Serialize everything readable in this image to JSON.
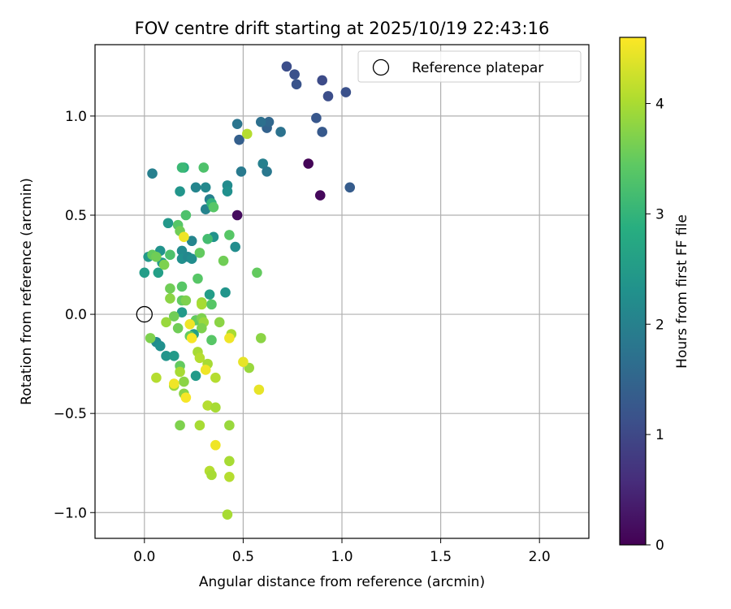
{
  "chart_data": {
    "type": "scatter",
    "title": "FOV centre drift starting at 2025/10/19 22:43:16",
    "xlabel": "Angular distance from reference (arcmin)",
    "ylabel": "Rotation from reference (arcmin)",
    "xlim": [
      -0.25,
      2.25
    ],
    "ylim": [
      -1.13,
      1.36
    ],
    "xticks": [
      0.0,
      0.5,
      1.0,
      1.5,
      2.0
    ],
    "xtick_labels": [
      "0.0",
      "0.5",
      "1.0",
      "1.5",
      "2.0"
    ],
    "yticks": [
      -1.0,
      -0.5,
      0.0,
      0.5,
      1.0
    ],
    "ytick_labels": [
      "−1.0",
      "−0.5",
      "0.0",
      "0.5",
      "1.0"
    ],
    "grid": true,
    "legend": {
      "position": "top-right",
      "entries": [
        "Reference platepar"
      ]
    },
    "reference_point": {
      "x": 0.0,
      "y": 0.0,
      "label": "Reference platepar"
    },
    "colorbar": {
      "label": "Hours from first FF file",
      "range": [
        0,
        4.6
      ],
      "ticks": [
        0,
        1,
        2,
        3,
        4
      ],
      "tick_labels": [
        "0",
        "1",
        "2",
        "3",
        "4"
      ],
      "colormap": "viridis"
    },
    "points": [
      {
        "x": 0.83,
        "y": 0.76,
        "t": 0.05
      },
      {
        "x": 0.89,
        "y": 0.6,
        "t": 0.1
      },
      {
        "x": 0.47,
        "y": 0.5,
        "t": 0.15
      },
      {
        "x": 0.72,
        "y": 1.25,
        "t": 1.1
      },
      {
        "x": 0.76,
        "y": 1.21,
        "t": 1.15
      },
      {
        "x": 0.77,
        "y": 1.16,
        "t": 1.2
      },
      {
        "x": 0.9,
        "y": 1.18,
        "t": 1.05
      },
      {
        "x": 0.93,
        "y": 1.1,
        "t": 1.1
      },
      {
        "x": 1.02,
        "y": 1.12,
        "t": 1.15
      },
      {
        "x": 0.87,
        "y": 0.99,
        "t": 1.25
      },
      {
        "x": 0.9,
        "y": 0.92,
        "t": 1.3
      },
      {
        "x": 1.04,
        "y": 0.64,
        "t": 1.35
      },
      {
        "x": 0.48,
        "y": 0.88,
        "t": 1.4
      },
      {
        "x": 0.62,
        "y": 0.94,
        "t": 1.45
      },
      {
        "x": 0.63,
        "y": 0.97,
        "t": 1.55
      },
      {
        "x": 0.59,
        "y": 0.97,
        "t": 1.7
      },
      {
        "x": 0.69,
        "y": 0.92,
        "t": 1.75
      },
      {
        "x": 0.47,
        "y": 0.96,
        "t": 1.8
      },
      {
        "x": 0.49,
        "y": 0.72,
        "t": 1.9
      },
      {
        "x": 0.6,
        "y": 0.76,
        "t": 2.0
      },
      {
        "x": 0.62,
        "y": 0.72,
        "t": 1.85
      },
      {
        "x": 0.04,
        "y": 0.71,
        "t": 2.0
      },
      {
        "x": 0.26,
        "y": 0.64,
        "t": 2.1
      },
      {
        "x": 0.31,
        "y": 0.64,
        "t": 2.15
      },
      {
        "x": 0.42,
        "y": 0.65,
        "t": 2.2
      },
      {
        "x": 0.42,
        "y": 0.62,
        "t": 2.3
      },
      {
        "x": 0.18,
        "y": 0.62,
        "t": 2.4
      },
      {
        "x": 0.33,
        "y": 0.58,
        "t": 2.0
      },
      {
        "x": 0.31,
        "y": 0.53,
        "t": 2.05
      },
      {
        "x": 0.46,
        "y": 0.34,
        "t": 2.25
      },
      {
        "x": 0.35,
        "y": 0.39,
        "t": 2.35
      },
      {
        "x": 0.24,
        "y": 0.37,
        "t": 2.1
      },
      {
        "x": 0.19,
        "y": 0.32,
        "t": 2.2
      },
      {
        "x": 0.19,
        "y": 0.28,
        "t": 2.3
      },
      {
        "x": 0.22,
        "y": 0.29,
        "t": 2.15
      },
      {
        "x": 0.24,
        "y": 0.28,
        "t": 2.25
      },
      {
        "x": 0.08,
        "y": 0.32,
        "t": 2.35
      },
      {
        "x": 0.02,
        "y": 0.29,
        "t": 2.45
      },
      {
        "x": 0.09,
        "y": 0.26,
        "t": 2.5
      },
      {
        "x": 0.12,
        "y": 0.46,
        "t": 2.45
      },
      {
        "x": 0.0,
        "y": 0.21,
        "t": 2.55
      },
      {
        "x": 0.07,
        "y": 0.21,
        "t": 2.6
      },
      {
        "x": 0.33,
        "y": 0.1,
        "t": 2.55
      },
      {
        "x": 0.41,
        "y": 0.11,
        "t": 2.4
      },
      {
        "x": 0.19,
        "y": 0.01,
        "t": 2.5
      },
      {
        "x": 0.06,
        "y": -0.14,
        "t": 2.2
      },
      {
        "x": 0.08,
        "y": -0.16,
        "t": 2.3
      },
      {
        "x": 0.11,
        "y": -0.21,
        "t": 2.4
      },
      {
        "x": 0.15,
        "y": -0.21,
        "t": 2.5
      },
      {
        "x": 0.26,
        "y": -0.31,
        "t": 2.5
      },
      {
        "x": 0.25,
        "y": -0.1,
        "t": 2.6
      },
      {
        "x": 0.2,
        "y": 0.74,
        "t": 2.9
      },
      {
        "x": 0.19,
        "y": 0.74,
        "t": 3.1
      },
      {
        "x": 0.3,
        "y": 0.74,
        "t": 3.3
      },
      {
        "x": 0.34,
        "y": 0.56,
        "t": 3.0
      },
      {
        "x": 0.35,
        "y": 0.54,
        "t": 3.4
      },
      {
        "x": 0.21,
        "y": 0.5,
        "t": 3.3
      },
      {
        "x": 0.17,
        "y": 0.45,
        "t": 3.4
      },
      {
        "x": 0.18,
        "y": 0.42,
        "t": 3.6
      },
      {
        "x": 0.32,
        "y": 0.38,
        "t": 3.2
      },
      {
        "x": 0.43,
        "y": 0.4,
        "t": 3.4
      },
      {
        "x": 0.28,
        "y": 0.31,
        "t": 3.5
      },
      {
        "x": 0.13,
        "y": 0.3,
        "t": 3.3
      },
      {
        "x": 0.04,
        "y": 0.3,
        "t": 3.5
      },
      {
        "x": 0.06,
        "y": 0.29,
        "t": 3.6
      },
      {
        "x": 0.1,
        "y": 0.25,
        "t": 3.7
      },
      {
        "x": 0.4,
        "y": 0.27,
        "t": 3.6
      },
      {
        "x": 0.57,
        "y": 0.21,
        "t": 3.5
      },
      {
        "x": 0.27,
        "y": 0.18,
        "t": 3.4
      },
      {
        "x": 0.13,
        "y": 0.13,
        "t": 3.6
      },
      {
        "x": 0.19,
        "y": 0.14,
        "t": 3.4
      },
      {
        "x": 0.13,
        "y": 0.08,
        "t": 3.8
      },
      {
        "x": 0.19,
        "y": 0.07,
        "t": 3.5
      },
      {
        "x": 0.21,
        "y": 0.07,
        "t": 3.7
      },
      {
        "x": 0.29,
        "y": 0.06,
        "t": 3.9
      },
      {
        "x": 0.29,
        "y": 0.05,
        "t": 4.0
      },
      {
        "x": 0.34,
        "y": 0.05,
        "t": 3.4
      },
      {
        "x": 0.15,
        "y": -0.01,
        "t": 3.6
      },
      {
        "x": 0.26,
        "y": -0.03,
        "t": 3.5
      },
      {
        "x": 0.29,
        "y": -0.02,
        "t": 3.7
      },
      {
        "x": 0.3,
        "y": -0.04,
        "t": 3.9
      },
      {
        "x": 0.38,
        "y": -0.04,
        "t": 3.8
      },
      {
        "x": 0.11,
        "y": -0.04,
        "t": 3.9
      },
      {
        "x": 0.17,
        "y": -0.07,
        "t": 3.6
      },
      {
        "x": 0.29,
        "y": -0.07,
        "t": 3.7
      },
      {
        "x": 0.23,
        "y": -0.11,
        "t": 3.5
      },
      {
        "x": 0.34,
        "y": -0.13,
        "t": 3.4
      },
      {
        "x": 0.44,
        "y": -0.1,
        "t": 4.0
      },
      {
        "x": 0.59,
        "y": -0.12,
        "t": 3.8
      },
      {
        "x": 0.03,
        "y": -0.12,
        "t": 3.7
      },
      {
        "x": 0.18,
        "y": -0.26,
        "t": 3.5
      },
      {
        "x": 0.27,
        "y": -0.19,
        "t": 4.0
      },
      {
        "x": 0.28,
        "y": -0.22,
        "t": 4.1
      },
      {
        "x": 0.32,
        "y": -0.25,
        "t": 4.0
      },
      {
        "x": 0.53,
        "y": -0.27,
        "t": 3.9
      },
      {
        "x": 0.18,
        "y": -0.29,
        "t": 4.0
      },
      {
        "x": 0.2,
        "y": -0.34,
        "t": 3.8
      },
      {
        "x": 0.15,
        "y": -0.36,
        "t": 3.9
      },
      {
        "x": 0.06,
        "y": -0.32,
        "t": 4.1
      },
      {
        "x": 0.36,
        "y": -0.32,
        "t": 4.1
      },
      {
        "x": 0.2,
        "y": -0.4,
        "t": 3.8
      },
      {
        "x": 0.32,
        "y": -0.46,
        "t": 4.1
      },
      {
        "x": 0.36,
        "y": -0.47,
        "t": 4.0
      },
      {
        "x": 0.18,
        "y": -0.56,
        "t": 3.7
      },
      {
        "x": 0.28,
        "y": -0.56,
        "t": 4.0
      },
      {
        "x": 0.43,
        "y": -0.56,
        "t": 3.9
      },
      {
        "x": 0.43,
        "y": -0.74,
        "t": 4.0
      },
      {
        "x": 0.33,
        "y": -0.79,
        "t": 4.1
      },
      {
        "x": 0.34,
        "y": -0.81,
        "t": 4.0
      },
      {
        "x": 0.43,
        "y": -0.82,
        "t": 4.1
      },
      {
        "x": 0.42,
        "y": -1.01,
        "t": 4.0
      },
      {
        "x": 0.52,
        "y": 0.91,
        "t": 4.1
      },
      {
        "x": 0.2,
        "y": 0.39,
        "t": 4.5
      },
      {
        "x": 0.23,
        "y": -0.05,
        "t": 4.5
      },
      {
        "x": 0.24,
        "y": -0.12,
        "t": 4.55
      },
      {
        "x": 0.43,
        "y": -0.12,
        "t": 4.5
      },
      {
        "x": 0.5,
        "y": -0.24,
        "t": 4.45
      },
      {
        "x": 0.31,
        "y": -0.28,
        "t": 4.5
      },
      {
        "x": 0.15,
        "y": -0.35,
        "t": 4.5
      },
      {
        "x": 0.21,
        "y": -0.42,
        "t": 4.55
      },
      {
        "x": 0.58,
        "y": -0.38,
        "t": 4.45
      },
      {
        "x": 0.36,
        "y": -0.66,
        "t": 4.5
      }
    ]
  }
}
